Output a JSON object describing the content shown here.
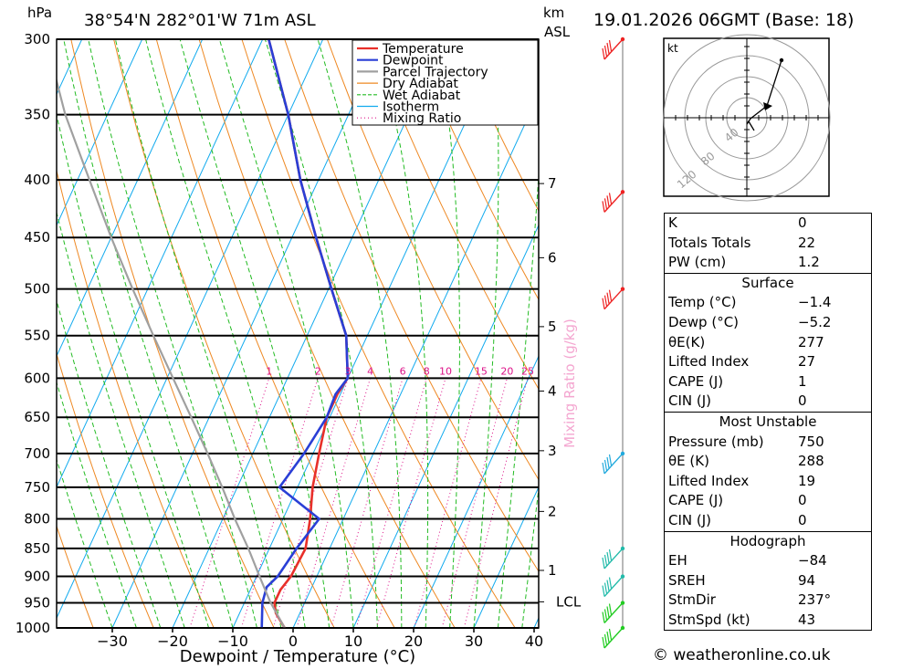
{
  "header": {
    "location": "38°54'N  282°01'W  71m  ASL",
    "datetime": "19.01.2026  06GMT  (Base: 18)",
    "pressure_unit": "hPa",
    "height_unit": "km",
    "height_ref": "ASL"
  },
  "chart_data": {
    "type": "skew-t log-p",
    "xlabel": "Dewpoint / Temperature (°C)",
    "ylabel": "hPa",
    "mixing_ratio_label": "Mixing Ratio (g/kg)",
    "pressure_levels": [
      300,
      350,
      400,
      450,
      500,
      550,
      600,
      650,
      700,
      750,
      800,
      850,
      900,
      950,
      1000
    ],
    "temperature_ticks": [
      -30,
      -20,
      -10,
      0,
      10,
      20,
      30,
      40
    ],
    "xlim": [
      -40,
      40
    ],
    "plim": [
      1000,
      300
    ],
    "height_ticks_km": [
      {
        "label": "7",
        "p": 403
      },
      {
        "label": "6",
        "p": 469
      },
      {
        "label": "5",
        "p": 540
      },
      {
        "label": "4",
        "p": 616
      },
      {
        "label": "3",
        "p": 696
      },
      {
        "label": "2",
        "p": 788
      },
      {
        "label": "1",
        "p": 889
      },
      {
        "label": "LCL",
        "p": 948
      }
    ],
    "mixing_ratio_values": [
      "1",
      "2",
      "3",
      "4",
      "6",
      "8",
      "10",
      "15",
      "20",
      "25"
    ],
    "legend": {
      "position": "top-right",
      "entries": [
        {
          "label": "Temperature",
          "color": "#e8302a",
          "style": "solid"
        },
        {
          "label": "Dewpoint",
          "color": "#2a3fd6",
          "style": "solid"
        },
        {
          "label": "Parcel Trajectory",
          "color": "#a0a0a0",
          "style": "solid"
        },
        {
          "label": "Dry Adiabat",
          "color": "#ee8822",
          "style": "solid"
        },
        {
          "label": "Wet Adiabat",
          "color": "#22bb22",
          "style": "dashed"
        },
        {
          "label": "Isotherm",
          "color": "#11aaee",
          "style": "solid"
        },
        {
          "label": "Mixing Ratio",
          "color": "#dd1188",
          "style": "dotted"
        }
      ]
    },
    "series": [
      {
        "name": "Temperature",
        "color": "#e8302a",
        "points": [
          [
            1000,
            -1.4
          ],
          [
            970,
            -4.0
          ],
          [
            950,
            -5.0
          ],
          [
            925,
            -5.0
          ],
          [
            900,
            -4.3
          ],
          [
            850,
            -4.0
          ],
          [
            800,
            -5.5
          ],
          [
            750,
            -7.5
          ],
          [
            700,
            -9.0
          ],
          [
            650,
            -10.5
          ],
          [
            620,
            -10.5
          ],
          [
            600,
            -10.0
          ],
          [
            550,
            -13.5
          ],
          [
            500,
            -19.5
          ],
          [
            450,
            -26.0
          ],
          [
            400,
            -33.0
          ],
          [
            350,
            -40.0
          ],
          [
            300,
            -49.0
          ]
        ]
      },
      {
        "name": "Dewpoint",
        "color": "#2a3fd6",
        "points": [
          [
            1000,
            -5.2
          ],
          [
            950,
            -7.0
          ],
          [
            920,
            -7.5
          ],
          [
            900,
            -6.5
          ],
          [
            850,
            -5.5
          ],
          [
            800,
            -4.0
          ],
          [
            750,
            -13.0
          ],
          [
            700,
            -11.5
          ],
          [
            650,
            -10.5
          ],
          [
            620,
            -10.8
          ],
          [
            600,
            -10.0
          ],
          [
            550,
            -13.5
          ],
          [
            500,
            -19.5
          ],
          [
            450,
            -26.0
          ],
          [
            400,
            -33.0
          ],
          [
            350,
            -40.0
          ],
          [
            300,
            -49.0
          ]
        ]
      },
      {
        "name": "Parcel Trajectory",
        "color": "#a0a0a0",
        "points": [
          [
            1000,
            -1.4
          ],
          [
            948,
            -5.8
          ],
          [
            900,
            -9.5
          ],
          [
            850,
            -13.5
          ],
          [
            800,
            -18.0
          ],
          [
            750,
            -22.5
          ],
          [
            700,
            -27.5
          ],
          [
            650,
            -33.0
          ],
          [
            600,
            -39.0
          ],
          [
            550,
            -45.5
          ],
          [
            500,
            -52.5
          ],
          [
            450,
            -60.0
          ],
          [
            400,
            -68.0
          ],
          [
            350,
            -77.0
          ],
          [
            300,
            -86.0
          ]
        ]
      }
    ],
    "wind_barbs": [
      {
        "p": 300,
        "color": "#ee2222"
      },
      {
        "p": 410,
        "color": "#ee2222"
      },
      {
        "p": 500,
        "color": "#ee2222"
      },
      {
        "p": 700,
        "color": "#22aadd"
      },
      {
        "p": 850,
        "color": "#22bbaa"
      },
      {
        "p": 900,
        "color": "#22bbaa"
      },
      {
        "p": 950,
        "color": "#22cc22"
      },
      {
        "p": 1000,
        "color": "#22cc22"
      }
    ]
  },
  "hodograph": {
    "unit_label": "kt",
    "ring_labels": [
      "40",
      "80",
      "120"
    ]
  },
  "indices": {
    "rows": [
      {
        "label": "K",
        "value": "0"
      },
      {
        "label": "Totals Totals",
        "value": "22"
      },
      {
        "label": "PW (cm)",
        "value": "1.2"
      }
    ]
  },
  "surface": {
    "title": "Surface",
    "rows": [
      {
        "label": "Temp (°C)",
        "value": "−1.4"
      },
      {
        "label": "Dewp (°C)",
        "value": "−5.2"
      },
      {
        "label": "θE(K)",
        "value": "277"
      },
      {
        "label": "Lifted Index",
        "value": "27"
      },
      {
        "label": "CAPE (J)",
        "value": "1"
      },
      {
        "label": "CIN (J)",
        "value": "0"
      }
    ]
  },
  "most_unstable": {
    "title": "Most Unstable",
    "rows": [
      {
        "label": "Pressure (mb)",
        "value": "750"
      },
      {
        "label": "θE (K)",
        "value": "288"
      },
      {
        "label": "Lifted Index",
        "value": "19"
      },
      {
        "label": "CAPE (J)",
        "value": "0"
      },
      {
        "label": "CIN (J)",
        "value": "0"
      }
    ]
  },
  "hodograph_stats": {
    "title": "Hodograph",
    "rows": [
      {
        "label": "EH",
        "value": "−84"
      },
      {
        "label": "SREH",
        "value": "94"
      },
      {
        "label": "StmDir",
        "value": "237°"
      },
      {
        "label": "StmSpd (kt)",
        "value": "43"
      }
    ]
  },
  "footer": {
    "credit": "© weatheronline.co.uk"
  }
}
